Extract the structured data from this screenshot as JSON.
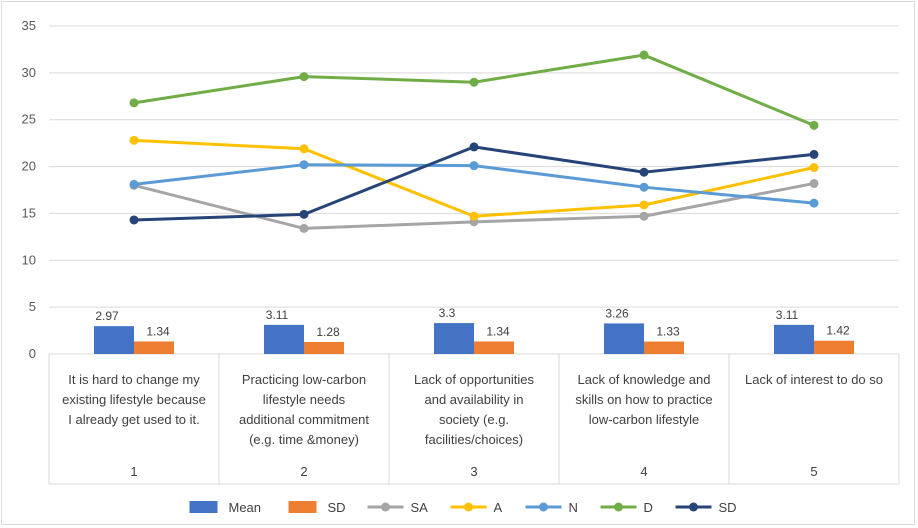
{
  "chart_data": {
    "type": "bar+line",
    "title": "",
    "xlabel": "",
    "ylabel": "",
    "ylim": [
      0,
      35
    ],
    "yticks": [
      0,
      5,
      10,
      15,
      20,
      25,
      30,
      35
    ],
    "grid": true,
    "legend_position": "bottom",
    "categories": [
      {
        "number": "1",
        "lines": [
          "It is hard to change my",
          "existing lifestyle because",
          "I already get used to it."
        ]
      },
      {
        "number": "2",
        "lines": [
          "Practicing low-carbon",
          "lifestyle needs",
          "additional commitment",
          "(e.g. time &money)"
        ]
      },
      {
        "number": "3",
        "lines": [
          "Lack  of  opportunities",
          "and availability  in",
          "society (e.g.",
          "facilities/choices)"
        ]
      },
      {
        "number": "4",
        "lines": [
          "Lack of knowledge and",
          "skills on how to practice",
          "low-carbon    lifestyle"
        ]
      },
      {
        "number": "5",
        "lines": [
          "Lack of interest to do so"
        ]
      }
    ],
    "bar_series": [
      {
        "name": "Mean",
        "color": "#4472c4",
        "values": [
          2.97,
          3.11,
          3.3,
          3.26,
          3.11
        ],
        "labels": [
          "2.97",
          "3.11",
          "3.3",
          "3.26",
          "3.11"
        ]
      },
      {
        "name": "SD",
        "color": "#ed7d31",
        "values": [
          1.34,
          1.28,
          1.34,
          1.33,
          1.42
        ],
        "labels": [
          "1.34",
          "1.28",
          "1.34",
          "1.33",
          "1.42"
        ]
      }
    ],
    "line_series": [
      {
        "name": "SA",
        "color": "#a5a5a5",
        "values": [
          18.0,
          13.4,
          14.1,
          14.7,
          18.2
        ]
      },
      {
        "name": "A",
        "color": "#ffc000",
        "values": [
          22.8,
          21.9,
          14.7,
          15.9,
          19.9
        ]
      },
      {
        "name": "N",
        "color": "#5b9bd5",
        "values": [
          18.1,
          20.2,
          20.1,
          17.8,
          16.1
        ]
      },
      {
        "name": "D",
        "color": "#70ad47",
        "values": [
          26.8,
          29.6,
          29.0,
          31.9,
          24.4
        ]
      },
      {
        "name": "SD",
        "color": "#264478",
        "values": [
          14.3,
          14.9,
          22.1,
          19.4,
          21.3
        ]
      }
    ]
  }
}
